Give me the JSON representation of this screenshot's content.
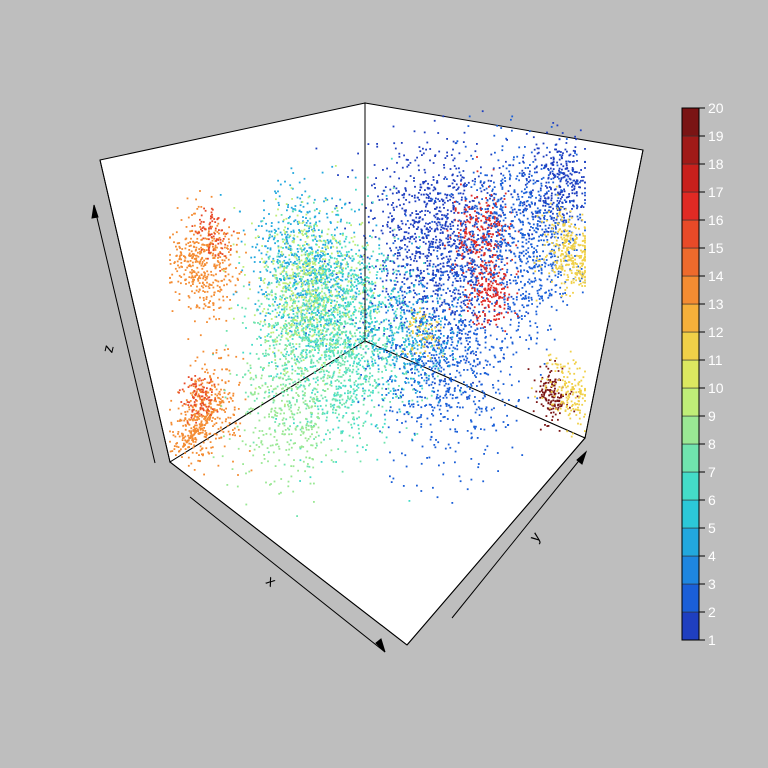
{
  "chart_data": {
    "type": "scatter",
    "subtype": "3d-scatter",
    "title": "",
    "axes": {
      "xlabel": "x",
      "ylabel": "y",
      "zlabel": "z"
    },
    "box": "full-box-with-back-panels",
    "colorbar": {
      "placement": "right",
      "min": 1,
      "max": 20,
      "ticks": [
        "1",
        "2",
        "3",
        "4",
        "5",
        "6",
        "7",
        "8",
        "9",
        "10",
        "11",
        "12",
        "13",
        "14",
        "15",
        "16",
        "17",
        "18",
        "19",
        "20"
      ],
      "palette": [
        "#2c2c8c",
        "#1f3fc0",
        "#1a5fd8",
        "#1e86e0",
        "#22a8de",
        "#2cc8d8",
        "#44dcc8",
        "#70e4ae",
        "#9ae894",
        "#bfee78",
        "#dce860",
        "#f0d048",
        "#f6b03a",
        "#f48c32",
        "#ee6a2c",
        "#e84a28",
        "#e02a24",
        "#c8201c",
        "#a01a18",
        "#7a1414"
      ]
    },
    "clusters": [
      {
        "value": 5,
        "x": 0.5,
        "y": 0.1,
        "z": 0.92,
        "spread": 0.1,
        "n": 700
      },
      {
        "value": 2,
        "x": 0.25,
        "y": 0.5,
        "z": 0.88,
        "spread": 0.12,
        "n": 1100
      },
      {
        "value": 17,
        "x": 0.15,
        "y": 0.62,
        "z": 0.88,
        "spread": 0.05,
        "n": 250
      },
      {
        "value": 3,
        "x": 0.12,
        "y": 0.82,
        "z": 0.75,
        "spread": 0.11,
        "n": 900
      },
      {
        "value": 2,
        "x": 0.05,
        "y": 0.92,
        "z": 0.9,
        "spread": 0.06,
        "n": 300
      },
      {
        "value": 10,
        "x": 0.55,
        "y": 0.18,
        "z": 0.74,
        "spread": 0.09,
        "n": 650
      },
      {
        "value": 14,
        "x": 0.9,
        "y": 0.05,
        "z": 0.7,
        "spread": 0.06,
        "n": 420
      },
      {
        "value": 16,
        "x": 0.9,
        "y": 0.1,
        "z": 0.78,
        "spread": 0.03,
        "n": 80
      },
      {
        "value": 12,
        "x": 0.05,
        "y": 1.0,
        "z": 0.62,
        "spread": 0.05,
        "n": 300
      },
      {
        "value": 7,
        "x": 0.5,
        "y": 0.3,
        "z": 0.55,
        "spread": 0.12,
        "n": 900
      },
      {
        "value": 3,
        "x": 0.25,
        "y": 0.55,
        "z": 0.42,
        "spread": 0.12,
        "n": 800
      },
      {
        "value": 17,
        "x": 0.25,
        "y": 0.8,
        "z": 0.48,
        "spread": 0.04,
        "n": 180
      },
      {
        "value": 20,
        "x": 0.1,
        "y": 0.95,
        "z": 0.12,
        "spread": 0.03,
        "n": 150
      },
      {
        "value": 12,
        "x": 0.05,
        "y": 1.0,
        "z": 0.15,
        "spread": 0.05,
        "n": 160
      },
      {
        "value": 14,
        "x": 1.0,
        "y": 0.15,
        "z": 0.05,
        "spread": 0.07,
        "n": 500
      },
      {
        "value": 16,
        "x": 0.95,
        "y": 0.1,
        "z": 0.18,
        "spread": 0.03,
        "n": 90
      },
      {
        "value": 8,
        "x": 0.8,
        "y": 0.6,
        "z": 0.05,
        "spread": 0.14,
        "n": 800
      },
      {
        "value": 9,
        "x": 0.7,
        "y": 0.25,
        "z": 0.15,
        "spread": 0.08,
        "n": 300
      },
      {
        "value": 5,
        "x": 0.6,
        "y": 0.8,
        "z": 0.1,
        "spread": 0.08,
        "n": 300
      },
      {
        "value": 12,
        "x": 0.35,
        "y": 0.55,
        "z": 0.45,
        "spread": 0.03,
        "n": 70
      }
    ]
  }
}
